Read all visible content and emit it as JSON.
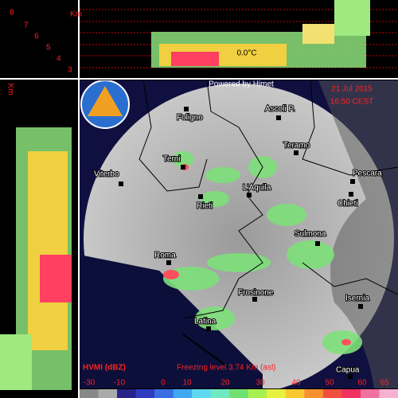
{
  "profile": {
    "top_unit": "Km",
    "heights": [
      "8",
      "7",
      "6",
      "5",
      "4",
      "3"
    ],
    "side_unit": "Km",
    "freezing_mark": "0.0°C"
  },
  "map": {
    "credit": "Powered by Himet",
    "date": "21 Jul 2015",
    "time": "16:50 CEST",
    "cities": [
      {
        "label": "Foligno"
      },
      {
        "label": "Ascoli P."
      },
      {
        "label": "Teramo"
      },
      {
        "label": "Terni"
      },
      {
        "label": "Viterbo"
      },
      {
        "label": "Pescara"
      },
      {
        "label": "L'Aquila"
      },
      {
        "label": "Rieti"
      },
      {
        "label": "Chieti"
      },
      {
        "label": "Sulmona"
      },
      {
        "label": "Roma"
      },
      {
        "label": "Frosinone"
      },
      {
        "label": "Isernia"
      },
      {
        "label": "Latina"
      },
      {
        "label": "Capua"
      }
    ]
  },
  "legend": {
    "product": "HVMI (dBZ)",
    "freezing_level": "Freezing level  3.74 Km (asl)",
    "ticks": [
      -30,
      -10,
      0,
      10,
      20,
      30,
      40,
      50,
      60,
      65
    ]
  }
}
